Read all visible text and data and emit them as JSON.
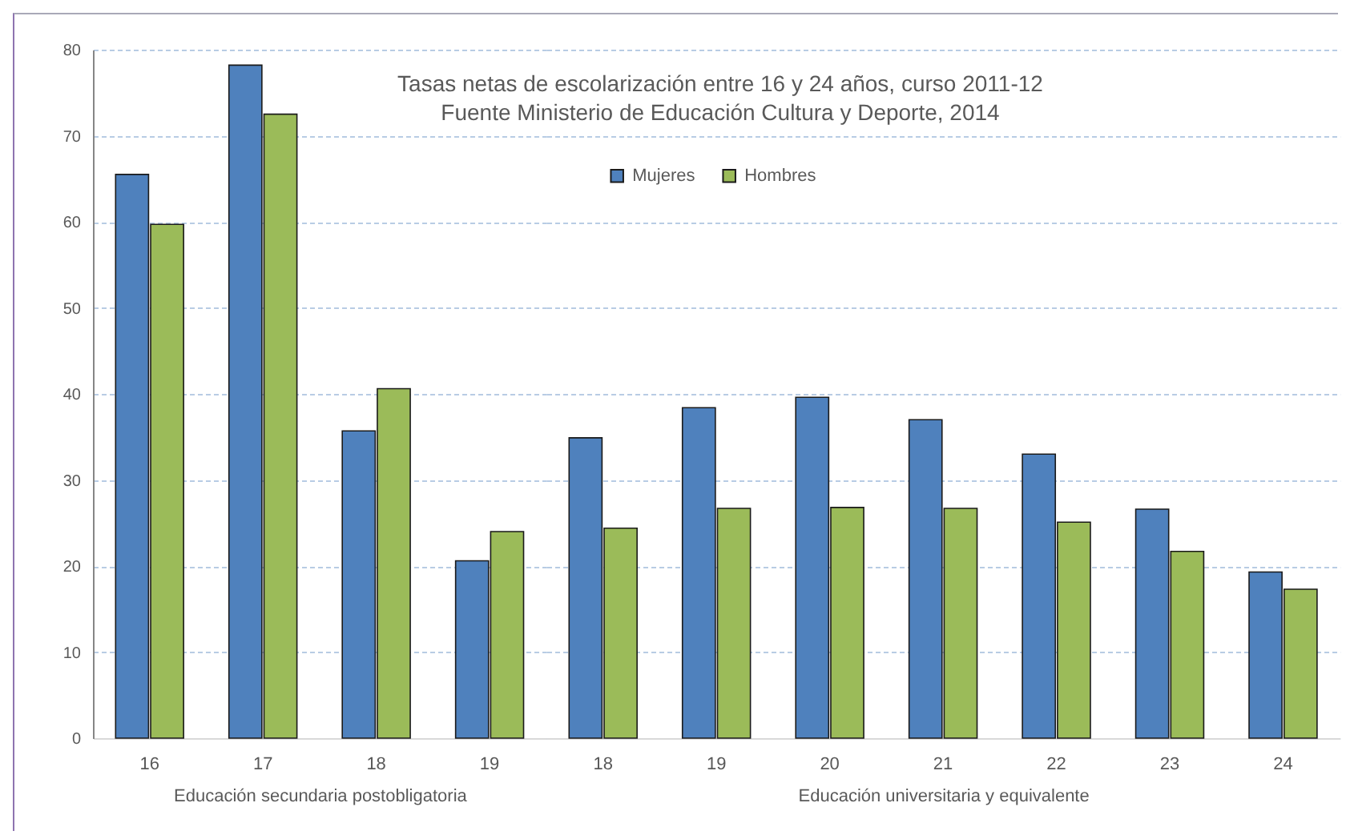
{
  "chart_data": [
    {
      "type": "bar",
      "xlabel": "Educación secundaria postobligatoria",
      "categories": [
        "16",
        "17",
        "18",
        "19"
      ],
      "series": [
        {
          "name": "Mujeres",
          "color": "#4f81bd",
          "values": [
            65.5,
            78.2,
            35.7,
            20.6
          ]
        },
        {
          "name": "Hombres",
          "color": "#9bbb59",
          "values": [
            59.7,
            72.5,
            40.6,
            24.0
          ]
        }
      ],
      "ylim": [
        0,
        80
      ],
      "yticks": [
        0,
        10,
        20,
        30,
        40,
        50,
        60,
        70,
        80
      ],
      "grid": "y",
      "legend": "top"
    },
    {
      "type": "bar",
      "title": "Tasas netas de escolarización entre 16 y 24 años, curso 2011-12",
      "subtitle": "Fuente Ministerio de Educación Cultura y Deporte, 2014",
      "xlabel": "Educación universitaria y equivalente",
      "categories": [
        "18",
        "19",
        "20",
        "21",
        "22",
        "23",
        "24"
      ],
      "series": [
        {
          "color": "#4f81bd",
          "values": [
            34.9,
            38.4,
            39.6,
            37.0,
            33.0,
            26.6,
            19.3
          ]
        },
        {
          "color": "#9bbb59",
          "values": [
            24.4,
            26.7,
            26.8,
            26.7,
            25.1,
            21.7,
            17.3
          ]
        }
      ],
      "ylim": [
        0,
        80
      ],
      "yticks": [
        0,
        10,
        20,
        30,
        40,
        50,
        60,
        70,
        80
      ],
      "grid": "y",
      "tick_labels": "x"
    }
  ]
}
